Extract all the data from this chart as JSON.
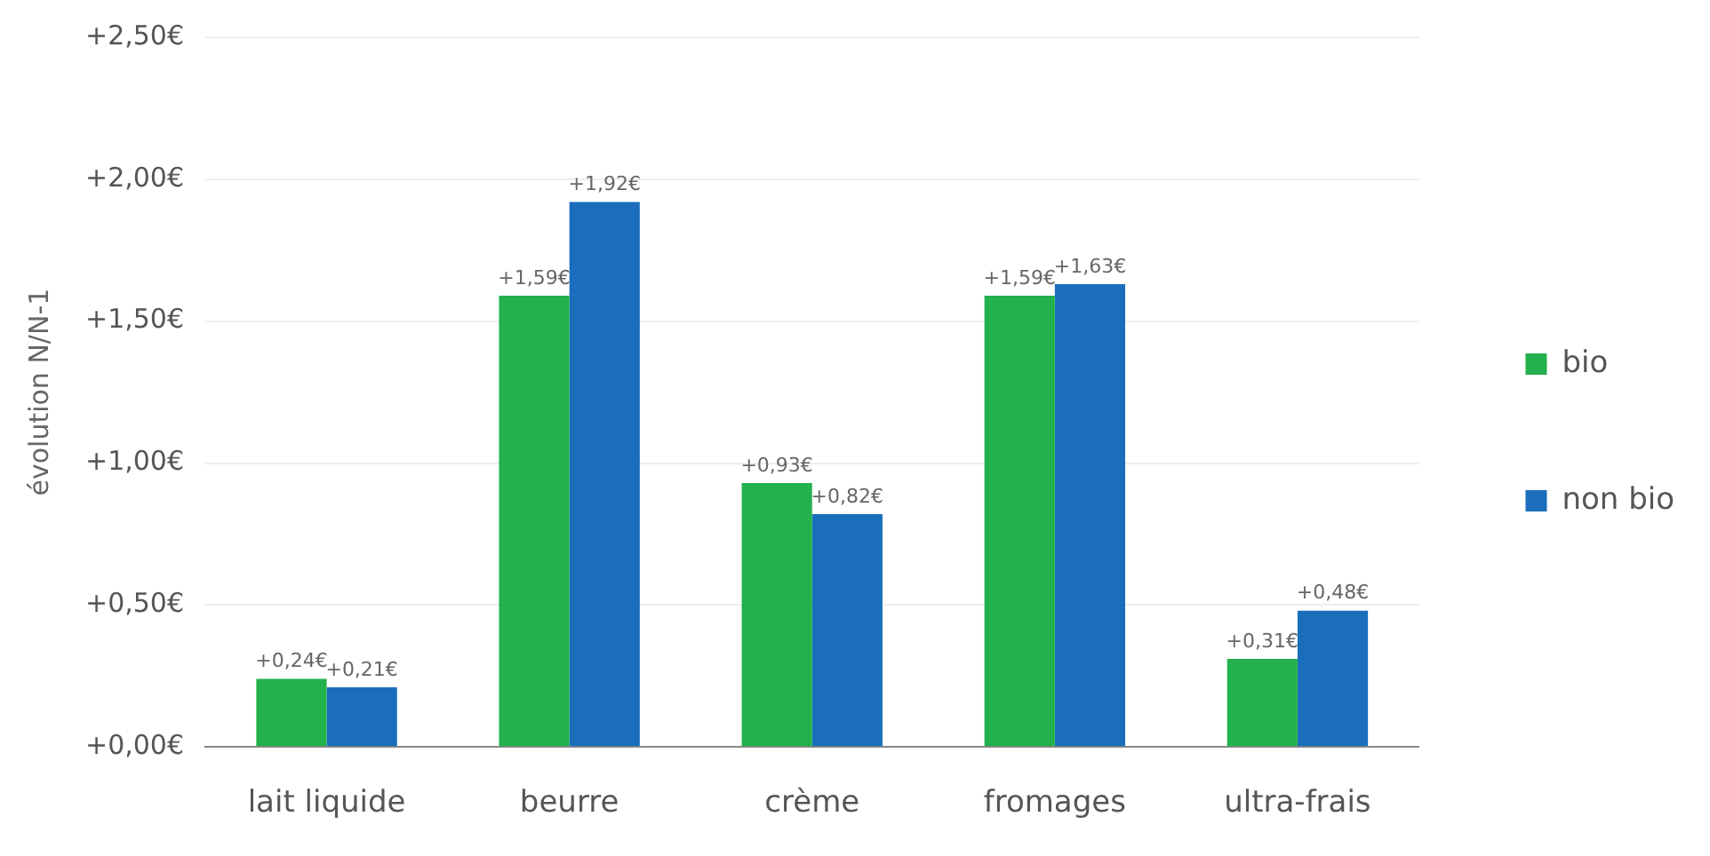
{
  "chart_data": {
    "type": "bar",
    "ylabel": "évolution N/N-1",
    "categories": [
      "lait liquide",
      "beurre",
      "crème",
      "fromages",
      "ultra-frais"
    ],
    "series": [
      {
        "name": "bio",
        "color": "#22b14c",
        "values": [
          0.24,
          1.59,
          0.93,
          1.59,
          0.31
        ],
        "value_labels": [
          "+0,24€",
          "+1,59€",
          "+0,93€",
          "+1,59€",
          "+0,31€"
        ]
      },
      {
        "name": "non bio",
        "color": "#1a6ebb",
        "values": [
          0.21,
          1.92,
          0.82,
          1.63,
          0.48
        ],
        "value_labels": [
          "+0,21€",
          "+1,92€",
          "+0,82€",
          "+1,63€",
          "+0,48€"
        ]
      }
    ],
    "ylim": [
      0,
      2.5
    ],
    "yticks": [
      {
        "value": 0,
        "label": "+0,00€"
      },
      {
        "value": 0.5,
        "label": "+0,50€"
      },
      {
        "value": 1,
        "label": "+1,00€"
      },
      {
        "value": 1.5,
        "label": "+1,50€"
      },
      {
        "value": 2,
        "label": "+2,00€"
      },
      {
        "value": 2.5,
        "label": "+2,50€"
      }
    ],
    "grid": "y",
    "legend": "right"
  }
}
